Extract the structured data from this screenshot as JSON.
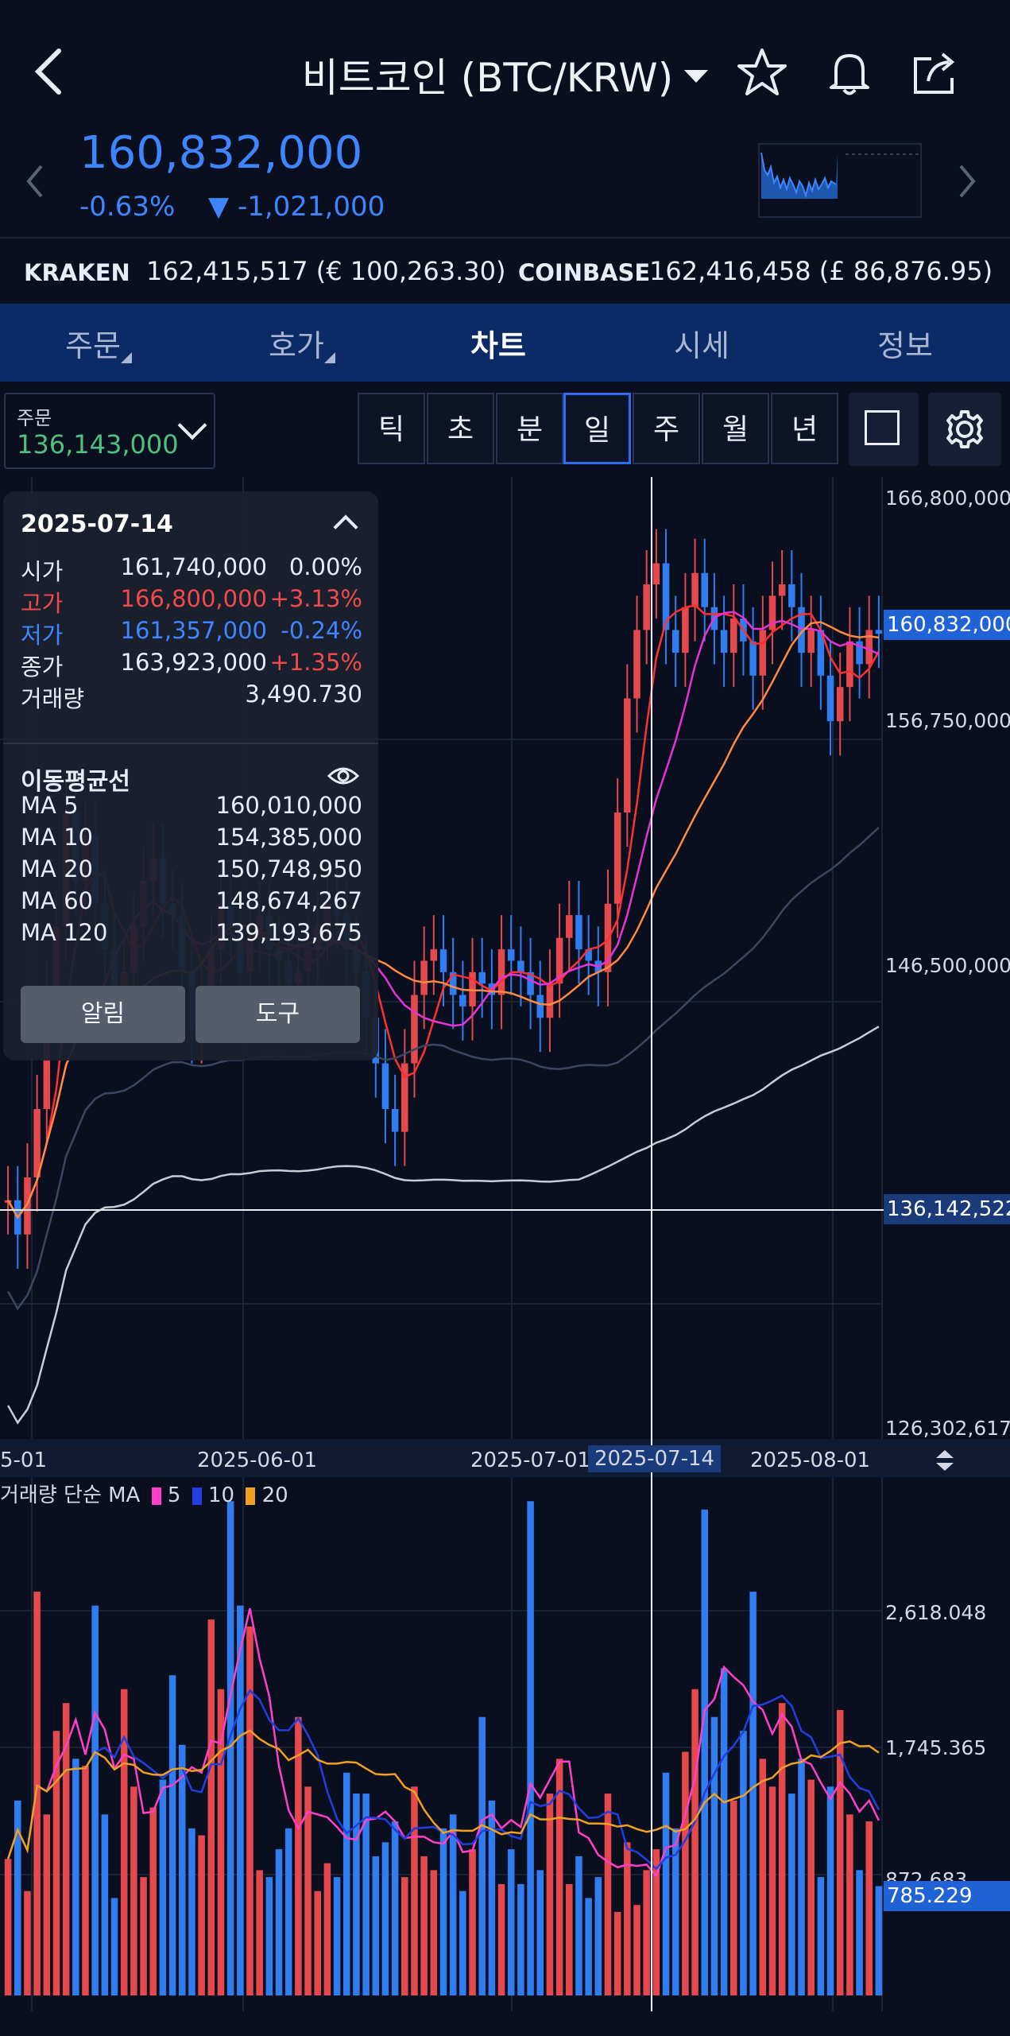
{
  "header": {
    "title": "비트코인 (BTC/KRW)",
    "price": "160,832,000",
    "change_pct": "-0.63%",
    "change_abs": "▼ -1,021,000",
    "accent": "#3d86ff"
  },
  "exchanges": {
    "kraken_label": "KRAKEN",
    "kraken_value": "162,415,517 (€ 100,263.30)",
    "coinbase_label": "COINBASE",
    "coinbase_value": "162,416,458 (£ 86,876.95)"
  },
  "tabs": [
    {
      "label": "주문"
    },
    {
      "label": "호가"
    },
    {
      "label": "차트",
      "active": true
    },
    {
      "label": "시세"
    },
    {
      "label": "정보"
    }
  ],
  "toolbar": {
    "order_label": "주문",
    "order_value": "136,143,000",
    "periods": [
      "틱",
      "초",
      "분",
      "일",
      "주",
      "월",
      "년"
    ],
    "active_period": "일"
  },
  "overlay": {
    "date": "2025-07-14",
    "rows": [
      {
        "k": "시가",
        "v": "161,740,000",
        "p": "0.00%",
        "color": "#e8ecf4"
      },
      {
        "k": "고가",
        "v": "166,800,000",
        "p": "+3.13%",
        "color": "#f04a4a"
      },
      {
        "k": "저가",
        "v": "161,357,000",
        "p": "-0.24%",
        "color": "#3d86ff"
      },
      {
        "k": "종가",
        "v": "163,923,000",
        "p": "+1.35%",
        "color": "#e8ecf4",
        "pcolor": "#f04a4a"
      }
    ],
    "volume_label": "거래량",
    "volume_value": "3,490.730",
    "ma_title": "이동평균선",
    "ma_rows": [
      {
        "k": "MA 5",
        "v": "160,010,000"
      },
      {
        "k": "MA 10",
        "v": "154,385,000"
      },
      {
        "k": "MA 20",
        "v": "150,748,950"
      },
      {
        "k": "MA 60",
        "v": "148,674,267"
      },
      {
        "k": "MA 120",
        "v": "139,193,675"
      }
    ],
    "alert_button": "알림",
    "tool_button": "도구"
  },
  "price_axis": {
    "ticks": [
      "166,800,000",
      "156,750,000",
      "146,500,000",
      "126,302,617"
    ],
    "current": "160,832,000",
    "crosshair": "136,142,522"
  },
  "date_axis": {
    "labels": [
      "5-01",
      "2025-06-01",
      "2025-07-01",
      "2025-07-14",
      "2025-08-01"
    ]
  },
  "volume_panel": {
    "legend_title": "거래량 단순 MA",
    "legend": [
      {
        "name": "5",
        "color": "#ff3fc7"
      },
      {
        "name": "10",
        "color": "#1f3fe0"
      },
      {
        "name": "20",
        "color": "#f0a020"
      }
    ],
    "ticks": [
      "2,618.048",
      "1,745.365",
      "872.683"
    ],
    "current": "785.229"
  },
  "chart_data": {
    "type": "candlestick",
    "ylim": [
      126302617,
      166800000
    ],
    "candles_close": [
      136000000,
      134500000,
      137000000,
      140000000,
      145000000,
      148000000,
      153000000,
      150000000,
      152000000,
      149000000,
      147000000,
      145000000,
      146000000,
      148000000,
      150000000,
      151000000,
      149000000,
      148500000,
      146000000,
      143500000,
      145000000,
      147000000,
      149000000,
      148000000,
      146000000,
      147500000,
      148500000,
      147000000,
      146500000,
      145500000,
      146000000,
      147000000,
      148000000,
      149000000,
      148500000,
      147000000,
      146000000,
      144000000,
      142000000,
      140000000,
      139000000,
      142000000,
      145000000,
      146500000,
      147000000,
      146000000,
      145000000,
      144500000,
      146000000,
      145500000,
      145000000,
      147000000,
      146500000,
      146000000,
      145000000,
      144000000,
      145500000,
      147500000,
      148500000,
      147000000,
      146500000,
      146000000,
      149000000,
      153000000,
      158000000,
      161000000,
      163000000,
      163923000,
      161000000,
      160000000,
      162000000,
      163500000,
      162000000,
      161000000,
      160000000,
      161500000,
      160500000,
      159000000,
      161000000,
      162500000,
      163000000,
      162000000,
      160000000,
      161000000,
      159000000,
      157000000,
      158500000,
      160500000,
      159500000,
      161000000,
      160832000
    ],
    "volume": [
      980,
      1400,
      750,
      2900,
      1300,
      1900,
      2100,
      1700,
      1650,
      2800,
      1300,
      700,
      2200,
      1500,
      850,
      1350,
      1550,
      2300,
      1800,
      1200,
      1150,
      2700,
      2200,
      3550,
      2800,
      2650,
      900,
      850,
      1050,
      1200,
      2000,
      1500,
      750,
      950,
      850,
      1600,
      1450,
      1450,
      1000,
      1100,
      1250,
      850,
      1500,
      1000,
      900,
      1200,
      1300,
      750,
      1050,
      2000,
      1400,
      800,
      1050,
      800,
      3550,
      900,
      1450,
      1700,
      800,
      1000,
      700,
      850,
      1450,
      600,
      1100,
      650,
      900,
      1050,
      1600,
      1200,
      1750,
      2200,
      3490,
      2000,
      2350,
      1400,
      1900,
      2900,
      1700,
      1500,
      2100,
      1450,
      1700,
      1550,
      850,
      1500,
      2050,
      1300,
      900,
      1250,
      785
    ]
  }
}
